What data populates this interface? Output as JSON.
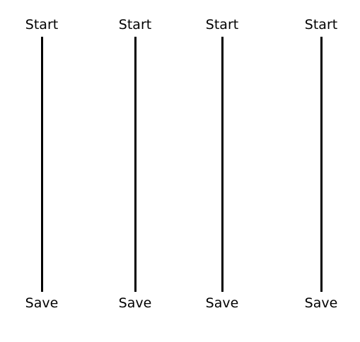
{
  "lanes": [
    {
      "top_label": "Start",
      "bottom_label": "Save"
    },
    {
      "top_label": "Start",
      "bottom_label": "Save"
    },
    {
      "top_label": "Start",
      "bottom_label": "Save"
    },
    {
      "top_label": "Start",
      "bottom_label": "Save"
    }
  ],
  "colors": {
    "background": "#ffffff",
    "line": "#000000",
    "text": "#000000"
  }
}
